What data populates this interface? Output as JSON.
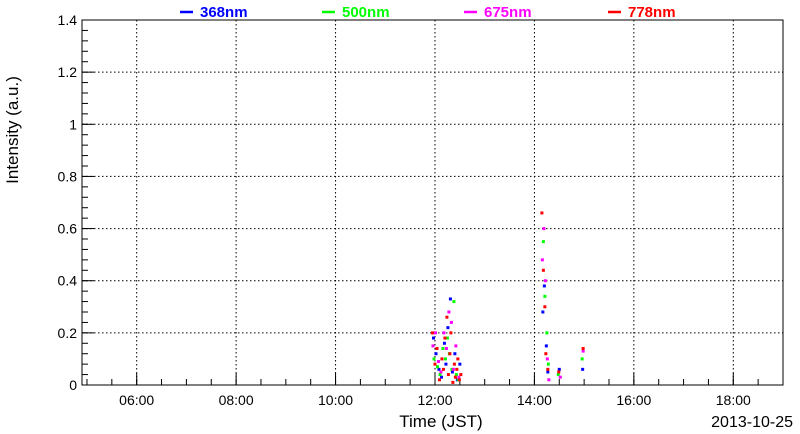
{
  "chart_data": {
    "type": "scatter",
    "title": "",
    "xlabel": "Time (JST)",
    "ylabel": "Intensity (a.u.)",
    "date_label": "2013-10-25",
    "x_unit": "hours (JST)",
    "xlim": [
      4.9,
      19.0
    ],
    "ylim": [
      0,
      1.4
    ],
    "x_ticks": [
      {
        "value": 6,
        "label": "06:00"
      },
      {
        "value": 8,
        "label": "08:00"
      },
      {
        "value": 10,
        "label": "10:00"
      },
      {
        "value": 12,
        "label": "12:00"
      },
      {
        "value": 14,
        "label": "14:00"
      },
      {
        "value": 16,
        "label": "16:00"
      },
      {
        "value": 18,
        "label": "18:00"
      }
    ],
    "y_ticks": [
      {
        "value": 0,
        "label": "0"
      },
      {
        "value": 0.2,
        "label": "0.2"
      },
      {
        "value": 0.4,
        "label": "0.4"
      },
      {
        "value": 0.6,
        "label": "0.6"
      },
      {
        "value": 0.8,
        "label": "0.8"
      },
      {
        "value": 1.0,
        "label": "1"
      },
      {
        "value": 1.2,
        "label": "1.2"
      },
      {
        "value": 1.4,
        "label": "1.4"
      }
    ],
    "grid": true,
    "legend_position": "top",
    "series": [
      {
        "name": "368nm",
        "color": "#0000ff",
        "points": [
          [
            11.97,
            0.18
          ],
          [
            12.02,
            0.12
          ],
          [
            12.08,
            0.06
          ],
          [
            12.13,
            0.03
          ],
          [
            12.19,
            0.16
          ],
          [
            12.22,
            0.08
          ],
          [
            12.26,
            0.22
          ],
          [
            12.31,
            0.33
          ],
          [
            12.35,
            0.05
          ],
          [
            12.4,
            0.12
          ],
          [
            12.45,
            0.02
          ],
          [
            12.5,
            0.08
          ],
          [
            14.17,
            0.28
          ],
          [
            14.2,
            0.38
          ],
          [
            14.24,
            0.15
          ],
          [
            14.27,
            0.05
          ],
          [
            14.5,
            0.06
          ],
          [
            14.97,
            0.06
          ]
        ]
      },
      {
        "name": "500nm",
        "color": "#00ff00",
        "points": [
          [
            11.98,
            0.1
          ],
          [
            12.05,
            0.07
          ],
          [
            12.1,
            0.04
          ],
          [
            12.16,
            0.14
          ],
          [
            12.21,
            0.1
          ],
          [
            12.25,
            0.18
          ],
          [
            12.29,
            0.12
          ],
          [
            12.34,
            0.06
          ],
          [
            12.38,
            0.32
          ],
          [
            12.43,
            0.04
          ],
          [
            12.47,
            0.02
          ],
          [
            14.18,
            0.55
          ],
          [
            14.21,
            0.34
          ],
          [
            14.25,
            0.2
          ],
          [
            14.28,
            0.08
          ],
          [
            14.48,
            0.04
          ],
          [
            14.96,
            0.1
          ]
        ]
      },
      {
        "name": "675nm",
        "color": "#ff00ff",
        "points": [
          [
            11.96,
            0.15
          ],
          [
            12.01,
            0.2
          ],
          [
            12.07,
            0.09
          ],
          [
            12.12,
            0.05
          ],
          [
            12.18,
            0.2
          ],
          [
            12.23,
            0.14
          ],
          [
            12.28,
            0.28
          ],
          [
            12.33,
            0.24
          ],
          [
            12.37,
            0.06
          ],
          [
            12.42,
            0.15
          ],
          [
            12.48,
            0.03
          ],
          [
            14.16,
            0.48
          ],
          [
            14.19,
            0.6
          ],
          [
            14.22,
            0.4
          ],
          [
            14.26,
            0.1
          ],
          [
            14.29,
            0.02
          ],
          [
            14.52,
            0.03
          ],
          [
            14.98,
            0.13
          ]
        ]
      },
      {
        "name": "778nm",
        "color": "#ff0000",
        "points": [
          [
            11.95,
            0.2
          ],
          [
            12.0,
            0.08
          ],
          [
            12.04,
            0.14
          ],
          [
            12.09,
            0.02
          ],
          [
            12.14,
            0.1
          ],
          [
            12.17,
            0.06
          ],
          [
            12.2,
            0.18
          ],
          [
            12.24,
            0.26
          ],
          [
            12.27,
            0.04
          ],
          [
            12.3,
            0.12
          ],
          [
            12.32,
            0.2
          ],
          [
            12.36,
            0.01
          ],
          [
            12.39,
            0.08
          ],
          [
            12.41,
            0.03
          ],
          [
            12.44,
            0.06
          ],
          [
            12.46,
            0.1
          ],
          [
            12.49,
            0.02
          ],
          [
            12.52,
            0.04
          ],
          [
            14.15,
            0.66
          ],
          [
            14.18,
            0.44
          ],
          [
            14.21,
            0.3
          ],
          [
            14.23,
            0.12
          ],
          [
            14.27,
            0.06
          ],
          [
            14.49,
            0.05
          ],
          [
            14.98,
            0.14
          ]
        ]
      }
    ]
  }
}
